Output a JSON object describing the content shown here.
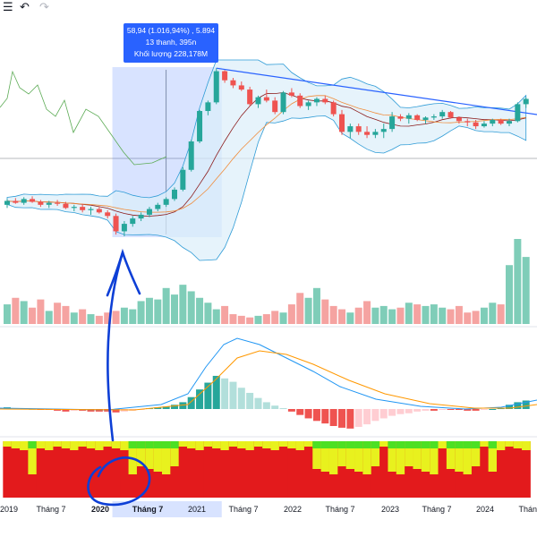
{
  "toolbar": {
    "undo_icon": "undo-icon",
    "redo_icon": "redo-icon",
    "menu_icon": "menu-icon"
  },
  "tooltip": {
    "line1": "58,94 (1.016,94%) , 5.894",
    "line2": "13 thanh, 395n",
    "line3": "Khối lượng 228,178M"
  },
  "colors": {
    "up": "#26a69a",
    "down": "#ef5350",
    "selection": "#2962ff",
    "bollinger_fill": "#dbeef9",
    "trendline": "#2962ff",
    "macd_line": "#2196f3",
    "signal_line": "#ff9800",
    "heat_red": "#e31a1c",
    "heat_yellow": "#e8f11e",
    "heat_green": "#4ce024",
    "annotation": "#0d3fd6"
  },
  "chart_data": {
    "type": "candlestick",
    "x_ticks": [
      "2019",
      "Tháng 7",
      "2020",
      "Tháng 7",
      "2021",
      "Tháng 7",
      "2022",
      "Tháng 7",
      "2023",
      "Tháng 7",
      "2024",
      "Thán"
    ],
    "highlighted_ticks": [
      "2020",
      "Tháng 7"
    ],
    "candles": [
      {
        "o": 5.8,
        "h": 6.4,
        "l": 5.5,
        "c": 6.2
      },
      {
        "o": 6.2,
        "h": 6.5,
        "l": 5.9,
        "c": 6.0
      },
      {
        "o": 6.0,
        "h": 6.6,
        "l": 5.8,
        "c": 6.4
      },
      {
        "o": 6.4,
        "h": 6.7,
        "l": 6.0,
        "c": 6.1
      },
      {
        "o": 6.1,
        "h": 6.3,
        "l": 5.6,
        "c": 5.8
      },
      {
        "o": 5.8,
        "h": 6.2,
        "l": 5.5,
        "c": 6.0
      },
      {
        "o": 6.0,
        "h": 6.3,
        "l": 5.7,
        "c": 5.9
      },
      {
        "o": 5.9,
        "h": 6.1,
        "l": 5.4,
        "c": 5.5
      },
      {
        "o": 5.5,
        "h": 5.8,
        "l": 5.2,
        "c": 5.6
      },
      {
        "o": 5.6,
        "h": 5.9,
        "l": 5.1,
        "c": 5.3
      },
      {
        "o": 5.3,
        "h": 5.6,
        "l": 4.9,
        "c": 5.4
      },
      {
        "o": 5.4,
        "h": 5.6,
        "l": 5.0,
        "c": 5.1
      },
      {
        "o": 5.1,
        "h": 5.3,
        "l": 4.6,
        "c": 4.8
      },
      {
        "o": 4.8,
        "h": 5.0,
        "l": 3.5,
        "c": 3.7
      },
      {
        "o": 3.7,
        "h": 4.4,
        "l": 3.4,
        "c": 4.2
      },
      {
        "o": 4.2,
        "h": 4.8,
        "l": 4.0,
        "c": 4.6
      },
      {
        "o": 4.6,
        "h": 5.1,
        "l": 4.4,
        "c": 4.9
      },
      {
        "o": 4.9,
        "h": 5.6,
        "l": 4.7,
        "c": 5.4
      },
      {
        "o": 5.4,
        "h": 6.0,
        "l": 5.2,
        "c": 5.8
      },
      {
        "o": 5.8,
        "h": 6.6,
        "l": 5.6,
        "c": 6.4
      },
      {
        "o": 6.4,
        "h": 7.8,
        "l": 6.2,
        "c": 7.5
      },
      {
        "o": 7.5,
        "h": 11.0,
        "l": 7.3,
        "c": 10.5
      },
      {
        "o": 10.5,
        "h": 17.5,
        "l": 10.2,
        "c": 17.0
      },
      {
        "o": 17.0,
        "h": 29.0,
        "l": 16.5,
        "c": 28.5
      },
      {
        "o": 28.5,
        "h": 34.0,
        "l": 26.5,
        "c": 33.0
      },
      {
        "o": 33.0,
        "h": 58.9,
        "l": 32.0,
        "c": 56.0
      },
      {
        "o": 56.0,
        "h": 57.0,
        "l": 46.0,
        "c": 48.0
      },
      {
        "o": 48.0,
        "h": 50.0,
        "l": 42.0,
        "c": 44.0
      },
      {
        "o": 44.0,
        "h": 47.0,
        "l": 40.0,
        "c": 41.0
      },
      {
        "o": 41.0,
        "h": 43.0,
        "l": 31.0,
        "c": 32.0
      },
      {
        "o": 32.0,
        "h": 37.0,
        "l": 30.0,
        "c": 36.0
      },
      {
        "o": 36.0,
        "h": 41.0,
        "l": 33.0,
        "c": 34.0
      },
      {
        "o": 34.0,
        "h": 36.0,
        "l": 27.0,
        "c": 28.0
      },
      {
        "o": 28.0,
        "h": 40.0,
        "l": 27.0,
        "c": 39.0
      },
      {
        "o": 39.0,
        "h": 42.0,
        "l": 36.0,
        "c": 37.0
      },
      {
        "o": 37.0,
        "h": 38.5,
        "l": 30.0,
        "c": 31.0
      },
      {
        "o": 31.0,
        "h": 34.0,
        "l": 29.0,
        "c": 33.0
      },
      {
        "o": 33.0,
        "h": 36.0,
        "l": 31.0,
        "c": 35.0
      },
      {
        "o": 35.0,
        "h": 37.0,
        "l": 32.0,
        "c": 33.0
      },
      {
        "o": 33.0,
        "h": 34.0,
        "l": 26.0,
        "c": 27.0
      },
      {
        "o": 27.0,
        "h": 29.0,
        "l": 19.0,
        "c": 20.0
      },
      {
        "o": 20.0,
        "h": 23.0,
        "l": 18.0,
        "c": 22.0
      },
      {
        "o": 22.0,
        "h": 23.0,
        "l": 19.0,
        "c": 20.0
      },
      {
        "o": 20.0,
        "h": 22.0,
        "l": 18.0,
        "c": 19.0
      },
      {
        "o": 19.0,
        "h": 21.0,
        "l": 18.0,
        "c": 20.0
      },
      {
        "o": 20.0,
        "h": 23.0,
        "l": 18.0,
        "c": 21.0
      },
      {
        "o": 21.0,
        "h": 28.0,
        "l": 20.0,
        "c": 26.0
      },
      {
        "o": 26.0,
        "h": 27.0,
        "l": 24.0,
        "c": 25.0
      },
      {
        "o": 25.0,
        "h": 27.5,
        "l": 23.0,
        "c": 26.5
      },
      {
        "o": 26.5,
        "h": 27.0,
        "l": 24.0,
        "c": 24.5
      },
      {
        "o": 24.5,
        "h": 26.0,
        "l": 23.0,
        "c": 25.5
      },
      {
        "o": 25.5,
        "h": 27.0,
        "l": 24.5,
        "c": 26.0
      },
      {
        "o": 26.0,
        "h": 29.0,
        "l": 25.0,
        "c": 28.0
      },
      {
        "o": 28.0,
        "h": 28.5,
        "l": 25.0,
        "c": 25.5
      },
      {
        "o": 25.5,
        "h": 26.0,
        "l": 23.0,
        "c": 24.0
      },
      {
        "o": 24.0,
        "h": 25.0,
        "l": 22.0,
        "c": 23.5
      },
      {
        "o": 23.5,
        "h": 24.5,
        "l": 21.0,
        "c": 22.0
      },
      {
        "o": 22.0,
        "h": 24.0,
        "l": 21.5,
        "c": 23.0
      },
      {
        "o": 23.0,
        "h": 25.0,
        "l": 22.0,
        "c": 24.5
      },
      {
        "o": 24.5,
        "h": 25.0,
        "l": 22.5,
        "c": 23.0
      },
      {
        "o": 23.0,
        "h": 25.0,
        "l": 22.0,
        "c": 24.0
      },
      {
        "o": 24.0,
        "h": 33.0,
        "l": 23.5,
        "c": 32.0
      },
      {
        "o": 32.0,
        "h": 36.0,
        "l": 30.0,
        "c": 35.0
      }
    ],
    "volume": [
      1.2,
      1.6,
      1.4,
      1.0,
      1.5,
      0.8,
      1.3,
      1.1,
      0.7,
      0.9,
      0.6,
      0.5,
      0.7,
      0.8,
      1.0,
      0.9,
      1.4,
      1.6,
      1.5,
      2.2,
      1.8,
      2.4,
      2.0,
      1.6,
      1.3,
      0.9,
      1.1,
      0.6,
      0.5,
      0.4,
      0.5,
      0.6,
      0.8,
      0.7,
      1.2,
      1.9,
      1.6,
      2.2,
      1.5,
      1.1,
      0.9,
      0.7,
      1.0,
      1.4,
      1.0,
      1.1,
      0.9,
      1.0,
      1.3,
      1.2,
      1.1,
      1.2,
      1.0,
      0.9,
      1.1,
      0.7,
      0.8,
      1.0,
      1.3,
      1.2,
      3.6,
      5.2,
      4.1
    ],
    "macd_hist": [
      0.2,
      0.1,
      0.1,
      0.0,
      -0.1,
      -0.1,
      -0.2,
      -0.3,
      -0.2,
      -0.2,
      -0.3,
      -0.3,
      -0.3,
      -0.4,
      -0.3,
      -0.2,
      -0.1,
      0.1,
      0.2,
      0.3,
      0.5,
      0.8,
      1.4,
      2.3,
      3.1,
      3.9,
      3.6,
      3.2,
      2.5,
      1.9,
      1.3,
      0.8,
      0.4,
      0.1,
      -0.3,
      -0.7,
      -1.1,
      -1.4,
      -1.7,
      -2.0,
      -2.2,
      -2.3,
      -2.1,
      -1.8,
      -1.4,
      -1.1,
      -0.8,
      -0.6,
      -0.5,
      -0.3,
      -0.2,
      -0.2,
      -0.1,
      -0.1,
      -0.1,
      -0.2,
      -0.2,
      -0.1,
      0.0,
      0.1,
      0.5,
      0.8,
      1.0
    ],
    "heat": [
      "R",
      "R",
      "R",
      "Y",
      "R",
      "R",
      "R",
      "R",
      "R",
      "R",
      "R",
      "R",
      "R",
      "R",
      "R",
      "Y",
      "Y",
      "Y",
      "Y",
      "Y",
      "Y",
      "R",
      "R",
      "R",
      "R",
      "R",
      "R",
      "R",
      "R",
      "R",
      "R",
      "R",
      "R",
      "R",
      "R",
      "R",
      "R",
      "Y",
      "Y",
      "Y",
      "Y",
      "Y",
      "Y",
      "Y",
      "Y",
      "R",
      "Y",
      "Y",
      "Y",
      "Y",
      "Y",
      "Y",
      "R",
      "Y",
      "Y",
      "Y",
      "Y",
      "R",
      "Y",
      "R",
      "R",
      "R",
      "R"
    ]
  }
}
